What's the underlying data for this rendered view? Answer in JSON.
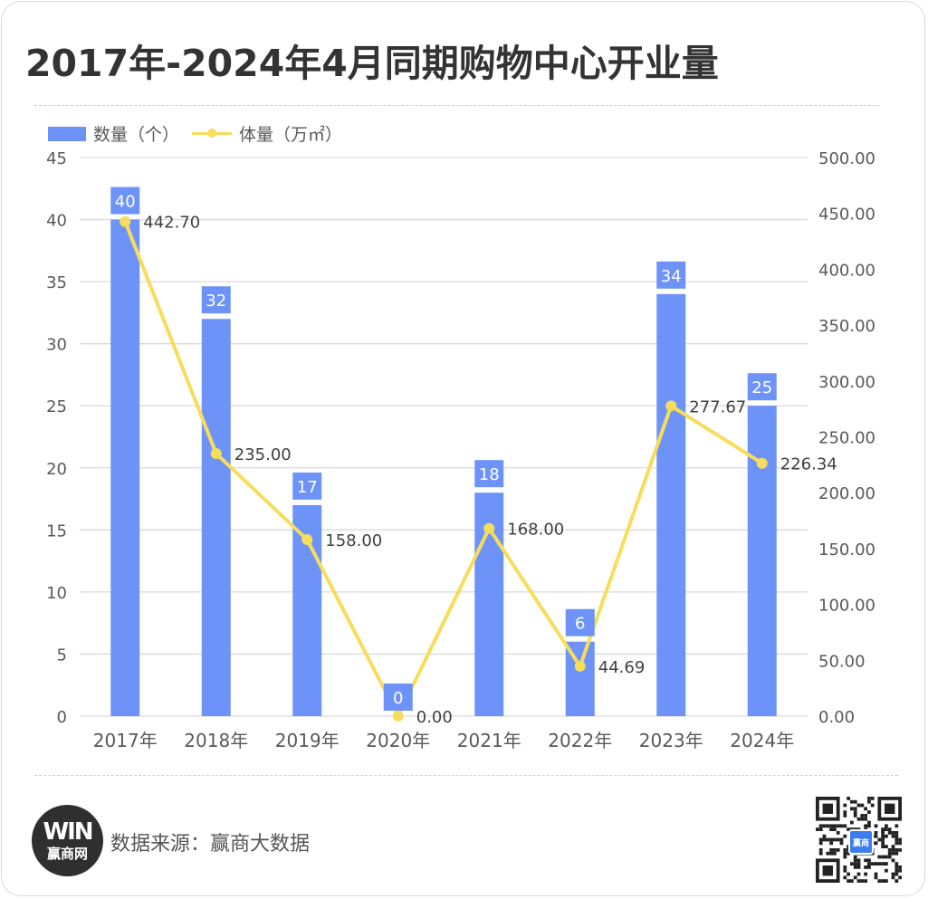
{
  "title": "2017年-2024年4月同期购物中心开业量",
  "legend": {
    "bar_label": "数量（个）",
    "line_label": "体量（万㎡）"
  },
  "footer": {
    "source": "数据来源：赢商大数据",
    "logo_mark": "WIN",
    "logo_text": "赢商网",
    "qr_label": "赢商"
  },
  "colors": {
    "bar": "#6e93f8",
    "line": "#f7dd5a",
    "grid": "#d9d9d9",
    "axis_text": "#595959"
  },
  "chart_data": {
    "type": "bar",
    "categories": [
      "2017年",
      "2018年",
      "2019年",
      "2020年",
      "2021年",
      "2022年",
      "2023年",
      "2024年"
    ],
    "series": [
      {
        "name": "数量（个）",
        "type": "bar",
        "axis": "left",
        "values": [
          40,
          32,
          17,
          0,
          18,
          6,
          34,
          25
        ],
        "labels": [
          "40",
          "32",
          "17",
          "0",
          "18",
          "6",
          "34",
          "25"
        ]
      },
      {
        "name": "体量（万㎡）",
        "type": "line",
        "axis": "right",
        "values": [
          442.7,
          235.0,
          158.0,
          0.0,
          168.0,
          44.69,
          277.67,
          226.34
        ],
        "labels": [
          "442.70",
          "235.00",
          "158.00",
          "0.00",
          "168.00",
          "44.69",
          "277.67",
          "226.34"
        ]
      }
    ],
    "y_left": {
      "range": [
        0,
        45
      ],
      "ticks": [
        0,
        5,
        10,
        15,
        20,
        25,
        30,
        35,
        40,
        45
      ],
      "tick_labels": [
        "0",
        "5",
        "10",
        "15",
        "20",
        "25",
        "30",
        "35",
        "40",
        "45"
      ]
    },
    "y_right": {
      "range": [
        0,
        500
      ],
      "ticks": [
        0,
        50,
        100,
        150,
        200,
        250,
        300,
        350,
        400,
        450,
        500
      ],
      "tick_labels": [
        "0.00",
        "50.00",
        "100.00",
        "150.00",
        "200.00",
        "250.00",
        "300.00",
        "350.00",
        "400.00",
        "450.00",
        "500.00"
      ]
    },
    "grid": true,
    "legend_position": "top-left"
  }
}
